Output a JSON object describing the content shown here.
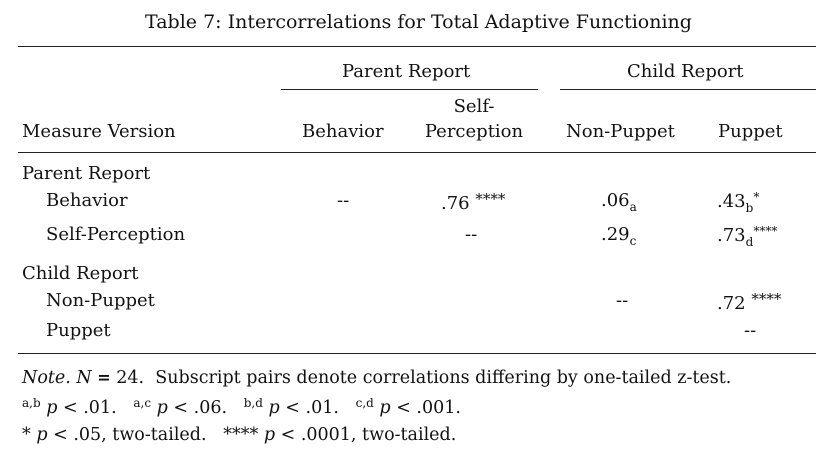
{
  "table": {
    "caption": "Table 7:  Intercorrelations for Total Adaptive Functioning",
    "group_headers": {
      "parent": "Parent Report",
      "child": "Child Report"
    },
    "column_headers": {
      "measure": "Measure Version",
      "behavior": "Behavior",
      "self_perception_line1": "Self-",
      "self_perception_line2": "Perception",
      "non_puppet": "Non-Puppet",
      "puppet": "Puppet"
    },
    "sections": [
      {
        "label": "Parent Report",
        "rows": [
          {
            "label": "Behavior",
            "behavior": "--",
            "self_perception": {
              "value": ".76",
              "stars": "****"
            },
            "non_puppet": {
              "value": ".06",
              "sub": "a"
            },
            "puppet": {
              "value": ".43",
              "sub": "b",
              "sup": "*"
            }
          },
          {
            "label": "Self-Perception",
            "self_perception": "--",
            "non_puppet": {
              "value": ".29",
              "sub": "c"
            },
            "puppet": {
              "value": ".73",
              "sub": "d",
              "sup": "****"
            }
          }
        ]
      },
      {
        "label": "Child Report",
        "rows": [
          {
            "label": "Non-Puppet",
            "non_puppet": "--",
            "puppet": {
              "value": ".72",
              "stars": "****"
            }
          },
          {
            "label": "Puppet",
            "puppet": "--"
          }
        ]
      }
    ]
  },
  "note": {
    "line1": {
      "note_label": "Note.",
      "n_symbol": "N",
      "eq": "=",
      "n_value": "24.",
      "text": "Subscript pairs denote correlations differing by one-tailed z-test."
    },
    "line2": [
      {
        "sup": "a,b",
        "p": "p",
        "text": "< .01."
      },
      {
        "sup": "a,c",
        "p": "p",
        "text": "< .06."
      },
      {
        "sup": "b,d",
        "p": "p",
        "text": "< .01."
      },
      {
        "sup": "c,d",
        "p": "p",
        "text": "< .001."
      }
    ],
    "line3": [
      {
        "stars": "*",
        "p": "p",
        "text": "< .05, two-tailed."
      },
      {
        "stars": "****",
        "p": "p",
        "text": "< .0001, two-tailed."
      }
    ]
  }
}
